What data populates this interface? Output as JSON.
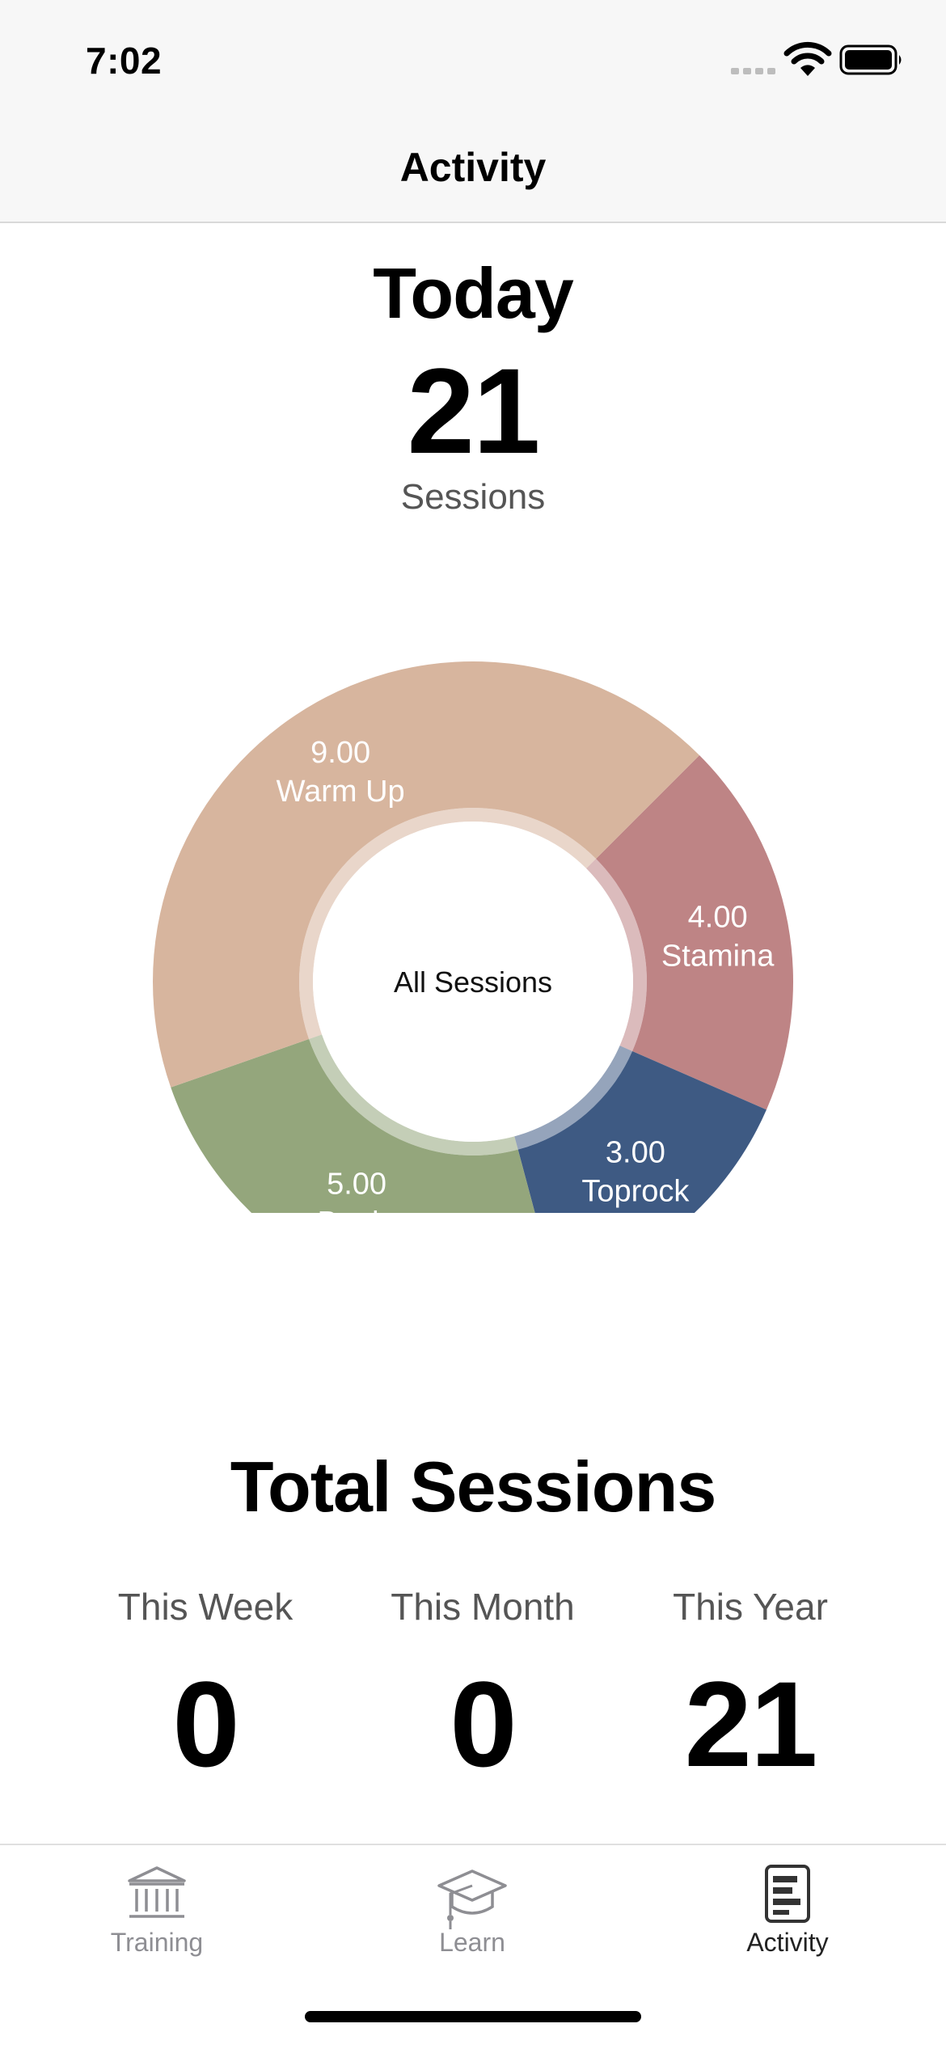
{
  "status_bar": {
    "time": "7:02"
  },
  "nav": {
    "title": "Activity"
  },
  "today": {
    "title": "Today",
    "count": "21",
    "unit": "Sessions"
  },
  "chart_data": {
    "type": "pie",
    "style": "donut",
    "center_label": "All Sessions",
    "slices": [
      {
        "name": "Warm Up",
        "value": 9.0,
        "value_label": "9.00",
        "color": "#d7b59e"
      },
      {
        "name": "Stamina",
        "value": 4.0,
        "value_label": "4.00",
        "color": "#be8485"
      },
      {
        "name": "Toprock",
        "value": 3.0,
        "value_label": "3.00",
        "color": "#3e5a83"
      },
      {
        "name": "Battle",
        "value": 5.0,
        "value_label": "5.00",
        "color": "#94a67c"
      }
    ]
  },
  "totals": {
    "title": "Total Sessions",
    "stats": [
      {
        "label": "This Week",
        "value": "0"
      },
      {
        "label": "This Month",
        "value": "0"
      },
      {
        "label": "This Year",
        "value": "21"
      }
    ]
  },
  "tab_bar": {
    "tabs": [
      {
        "label": "Training",
        "icon": "bank-icon",
        "active": false
      },
      {
        "label": "Learn",
        "icon": "graduation-cap-icon",
        "active": false
      },
      {
        "label": "Activity",
        "icon": "activity-report-icon",
        "active": true
      }
    ]
  }
}
